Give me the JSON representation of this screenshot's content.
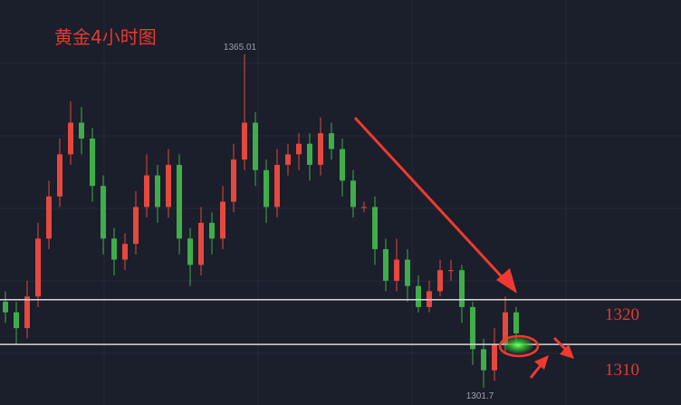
{
  "chart_data": {
    "type": "candlestick",
    "title": "黄金4小时图",
    "up_color": "#e5483f",
    "down_color": "#3fae4a",
    "ylim": [
      1298.4,
      1375.3
    ],
    "open": [
      1318,
      1316,
      1313,
      1319,
      1330,
      1338,
      1346,
      1352,
      1349,
      1340,
      1330,
      1326,
      1329,
      1336,
      1342,
      1336,
      1344,
      1330,
      1325,
      1333,
      1330,
      1337,
      1345,
      1352,
      1343,
      1336,
      1344,
      1346,
      1348,
      1344,
      1350,
      1347,
      1341,
      1336,
      1336,
      1328,
      1322,
      1326,
      1321,
      1317,
      1320,
      1324,
      1324,
      1317,
      1309,
      1305,
      1310,
      1316
    ],
    "high": [
      1320,
      1318,
      1322,
      1333,
      1341,
      1349,
      1356,
      1355,
      1351,
      1342,
      1332,
      1331,
      1339,
      1346,
      1344,
      1347,
      1346,
      1332,
      1336,
      1335,
      1340,
      1348,
      1365.01,
      1354,
      1345,
      1347,
      1348,
      1350,
      1350,
      1353,
      1352,
      1349,
      1343,
      1337,
      1338,
      1330,
      1330,
      1328,
      1323,
      1322,
      1326,
      1326,
      1325,
      1318,
      1311,
      1313,
      1319,
      1317
    ],
    "low": [
      1314,
      1310,
      1311,
      1317,
      1328,
      1336,
      1344,
      1346,
      1337,
      1327,
      1323,
      1324,
      1327,
      1334,
      1333,
      1334,
      1327,
      1321,
      1323,
      1327,
      1328,
      1335,
      1343,
      1340,
      1333,
      1334,
      1342,
      1343,
      1341,
      1342,
      1345,
      1338,
      1334,
      1335,
      1325,
      1320,
      1320,
      1318,
      1316,
      1316,
      1319,
      1322,
      1314,
      1306,
      1301.7,
      1303,
      1308,
      1310
    ],
    "close": [
      1316,
      1313,
      1319,
      1330,
      1338,
      1346,
      1352,
      1349,
      1340,
      1330,
      1326,
      1329,
      1336,
      1342,
      1336,
      1344,
      1330,
      1325,
      1333,
      1330,
      1337,
      1345,
      1352,
      1343,
      1336,
      1344,
      1346,
      1348,
      1344,
      1350,
      1347,
      1341,
      1336,
      1336,
      1328,
      1322,
      1326,
      1321,
      1317,
      1320,
      1324,
      1324,
      1317,
      1309,
      1305,
      1310,
      1316,
      1312
    ],
    "hlines": [
      1318.4,
      1309.9
    ],
    "annotations": [
      "1365.01",
      "1301.7",
      "1320",
      "1310"
    ]
  }
}
